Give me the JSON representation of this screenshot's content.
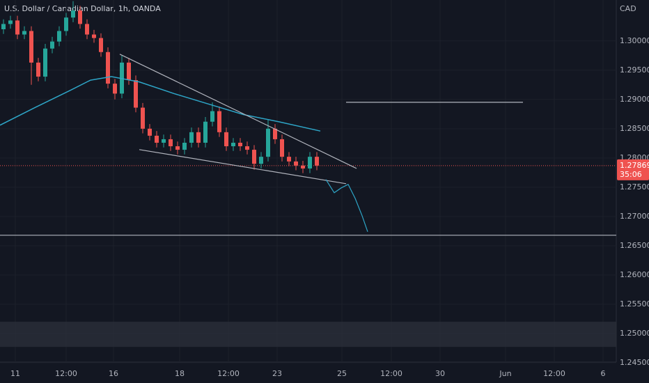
{
  "chart_data": {
    "type": "candlestick",
    "title": "U.S. Dollar / Canadian Dollar, 1h, OANDA",
    "y_axis_label": "CAD",
    "up_color": "#26a69a",
    "down_color": "#ef5350",
    "grid": true,
    "xlim": [
      0,
      88.5
    ],
    "ylim": [
      1.2451,
      1.307
    ],
    "xticks": [
      {
        "value": 2.2,
        "label": "11"
      },
      {
        "value": 9.5,
        "label": "12:00"
      },
      {
        "value": 16.3,
        "label": "16"
      },
      {
        "value": 25.8,
        "label": "18"
      },
      {
        "value": 32.8,
        "label": "12:00"
      },
      {
        "value": 39.8,
        "label": "23"
      },
      {
        "value": 49.1,
        "label": "25"
      },
      {
        "value": 56.2,
        "label": "12:00"
      },
      {
        "value": 63.2,
        "label": "30"
      },
      {
        "value": 72.6,
        "label": "Jun"
      },
      {
        "value": 79.6,
        "label": "12:00"
      },
      {
        "value": 86.6,
        "label": "6"
      }
    ],
    "yticks": [
      {
        "value": 1.245,
        "label": "1.24500"
      },
      {
        "value": 1.25,
        "label": "1.25000"
      },
      {
        "value": 1.255,
        "label": "1.25500"
      },
      {
        "value": 1.26,
        "label": "1.26000"
      },
      {
        "value": 1.265,
        "label": "1.26500"
      },
      {
        "value": 1.27,
        "label": "1.27000"
      },
      {
        "value": 1.275,
        "label": "1.27500"
      },
      {
        "value": 1.28,
        "label": "1.28000"
      },
      {
        "value": 1.285,
        "label": "1.28500"
      },
      {
        "value": 1.29,
        "label": "1.29000"
      },
      {
        "value": 1.295,
        "label": "1.29500"
      },
      {
        "value": 1.3,
        "label": "1.30000"
      }
    ],
    "open": [
      1.302,
      1.3029,
      1.3035,
      1.3011,
      1.3017,
      1.2963,
      1.2939,
      1.2987,
      1.2999,
      1.3017,
      1.304,
      1.3052,
      1.3029,
      1.3011,
      1.3005,
      1.2981,
      1.2927,
      1.291,
      1.2963,
      1.2933,
      1.2886,
      1.285,
      1.2838,
      1.2826,
      1.2832,
      1.282,
      1.2814,
      1.2826,
      1.2844,
      1.2826,
      1.2862,
      1.288,
      1.2844,
      1.282,
      1.2826,
      1.282,
      1.2814,
      1.279,
      1.2802,
      1.285,
      1.2832,
      1.2802,
      1.2794,
      1.2787,
      1.2782,
      1.2802
    ],
    "high": [
      1.3037,
      1.3043,
      1.3043,
      1.3025,
      1.3025,
      1.2971,
      1.2995,
      1.3007,
      1.3025,
      1.3048,
      1.3068,
      1.306,
      1.3037,
      1.3019,
      1.3013,
      1.2989,
      1.2935,
      1.2975,
      1.2971,
      1.2941,
      1.2894,
      1.2858,
      1.2846,
      1.284,
      1.284,
      1.2828,
      1.2834,
      1.2852,
      1.2852,
      1.287,
      1.2895,
      1.2888,
      1.2852,
      1.2834,
      1.2834,
      1.2828,
      1.2822,
      1.281,
      1.2866,
      1.2858,
      1.284,
      1.281,
      1.2802,
      1.2795,
      1.281,
      1.281
    ],
    "low": [
      1.3012,
      1.3021,
      1.3003,
      1.3003,
      1.2925,
      1.2931,
      1.2931,
      1.2979,
      1.2991,
      1.3009,
      1.3032,
      1.3021,
      1.3003,
      1.2997,
      1.2973,
      1.2919,
      1.29,
      1.2902,
      1.2925,
      1.2878,
      1.2842,
      1.283,
      1.2818,
      1.2818,
      1.2812,
      1.2806,
      1.2806,
      1.2818,
      1.2818,
      1.2818,
      1.2854,
      1.2836,
      1.2812,
      1.2812,
      1.2812,
      1.2806,
      1.278,
      1.2782,
      1.2794,
      1.2824,
      1.2794,
      1.2786,
      1.2779,
      1.2774,
      1.2774,
      1.2779
    ],
    "close": [
      1.3029,
      1.3035,
      1.3011,
      1.3017,
      1.2963,
      1.2939,
      1.2987,
      1.2999,
      1.3017,
      1.304,
      1.3052,
      1.3029,
      1.3011,
      1.3005,
      1.2981,
      1.2927,
      1.291,
      1.2963,
      1.2933,
      1.2886,
      1.285,
      1.2838,
      1.2826,
      1.2832,
      1.282,
      1.2814,
      1.2826,
      1.2844,
      1.2826,
      1.2862,
      1.288,
      1.2844,
      1.282,
      1.2826,
      1.282,
      1.2814,
      1.279,
      1.2802,
      1.285,
      1.2832,
      1.2802,
      1.2794,
      1.2787,
      1.2782,
      1.2802,
      1.2787
    ],
    "moving_average": {
      "color": "#2ea6c8",
      "x": [
        0,
        5,
        10,
        13,
        16,
        20,
        25,
        30,
        35,
        40,
        46
      ],
      "values": [
        1.2856,
        1.2886,
        1.2915,
        1.2933,
        1.2939,
        1.293,
        1.291,
        1.2892,
        1.2874,
        1.2862,
        1.2846
      ]
    },
    "drawings": [
      {
        "color": "#b2b5be",
        "x": [
          17.2,
          51.2
        ],
        "values": [
          1.29774,
          1.27821
        ]
      },
      {
        "color": "#b2b5be",
        "x": [
          20,
          49.7
        ],
        "values": [
          1.28143,
          1.2756
        ]
      },
      {
        "color": "#b2b5be",
        "x": [
          49.7,
          75.1
        ],
        "values": [
          1.28952,
          1.28952
        ]
      },
      {
        "color": "#b2b5be",
        "x": [
          0,
          88.5
        ],
        "values": [
          1.26679,
          1.26679
        ]
      },
      {
        "color": "#2ea6c8",
        "x": [
          46.8,
          48,
          49,
          50,
          51,
          52,
          52.8
        ],
        "values": [
          1.27631,
          1.27405,
          1.27488,
          1.27548,
          1.2731,
          1.27012,
          1.26738
        ]
      }
    ],
    "zone": {
      "color": "#2a2e39",
      "values": [
        1.2477,
        1.252
      ]
    },
    "last_price": {
      "value": 1.27869,
      "label": "1.27869",
      "countdown": "35:06",
      "color": "#ef5350"
    }
  }
}
